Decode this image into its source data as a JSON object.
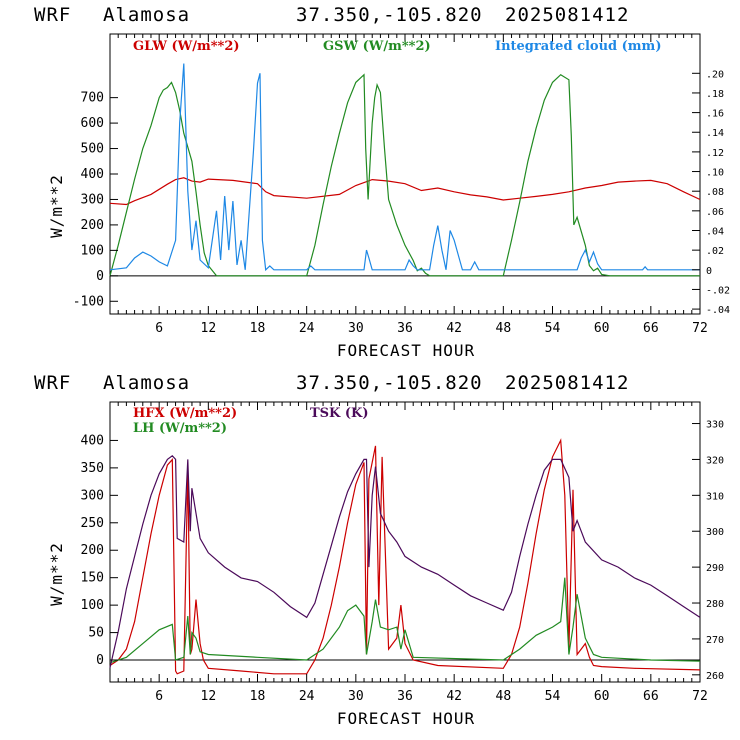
{
  "charts": [
    {
      "header": {
        "model": "WRF",
        "site": "Alamosa",
        "coords": "37.350,-105.820",
        "run": "2025081412"
      },
      "xlabel": "FORECAST HOUR",
      "ylabel": "W/m**2",
      "legend": [
        {
          "label": "GLW (W/m**2)",
          "color": "#cc0000"
        },
        {
          "label": "GSW (W/m**2)",
          "color": "#228b22"
        },
        {
          "label": "Integrated cloud (mm)",
          "color": "#1e88e5"
        }
      ]
    },
    {
      "header": {
        "model": "WRF",
        "site": "Alamosa",
        "coords": "37.350,-105.820",
        "run": "2025081412"
      },
      "xlabel": "FORECAST HOUR",
      "ylabel": "W/m**2",
      "legend": [
        {
          "label": "HFX (W/m**2)",
          "color": "#cc0000"
        },
        {
          "label": "LH  (W/m**2)",
          "color": "#228b22"
        },
        {
          "label": "TSK (K)",
          "color": "#4b0a5a"
        }
      ]
    }
  ],
  "chart_data": [
    {
      "type": "line",
      "title": "WRF Alamosa 37.350,-105.820 2025081412",
      "xlabel": "FORECAST HOUR",
      "ylabel": "W/m**2",
      "xlim": [
        0,
        72
      ],
      "ylim": [
        -150,
        950
      ],
      "y2lim": [
        -0.045,
        0.24
      ],
      "x_ticks": [
        6,
        12,
        18,
        24,
        30,
        36,
        42,
        48,
        54,
        60,
        66,
        72
      ],
      "y_ticks": [
        -100,
        0,
        100,
        200,
        300,
        400,
        500,
        600,
        700
      ],
      "y2_ticks": [
        -0.04,
        -0.02,
        0.0,
        0.02,
        0.04,
        0.06,
        0.08,
        0.1,
        0.12,
        0.14,
        0.16,
        0.18,
        0.2
      ],
      "y2_tick_labels": [
        "-.04",
        "-.02",
        "0",
        ".02",
        ".04",
        ".06",
        ".08",
        ".10",
        ".12",
        ".14",
        ".16",
        ".18",
        ".20"
      ],
      "series": [
        {
          "name": "GLW (W/m**2)",
          "color": "#cc0000",
          "axis": "left",
          "x": [
            0,
            2,
            3,
            5,
            7,
            8,
            9,
            10,
            11,
            12,
            15,
            18,
            19,
            20,
            24,
            28,
            30,
            32,
            34,
            36,
            38,
            40,
            42,
            44,
            46,
            48,
            50,
            52,
            54,
            56,
            58,
            60,
            62,
            64,
            66,
            68,
            70,
            72
          ],
          "y": [
            285,
            280,
            295,
            320,
            360,
            378,
            385,
            372,
            368,
            380,
            375,
            362,
            330,
            315,
            305,
            320,
            355,
            378,
            372,
            362,
            335,
            345,
            330,
            318,
            310,
            298,
            305,
            312,
            320,
            330,
            345,
            355,
            368,
            372,
            375,
            362,
            330,
            300
          ]
        },
        {
          "name": "GSW (W/m**2)",
          "color": "#228b22",
          "axis": "left",
          "x": [
            0,
            1,
            2,
            3,
            4,
            5,
            6,
            6.5,
            7,
            7.5,
            8,
            8.5,
            9,
            10,
            10.5,
            11,
            11.5,
            12,
            13,
            24,
            25,
            26,
            27,
            28,
            29,
            30,
            31,
            31.2,
            31.5,
            32,
            32.3,
            32.6,
            33,
            33.5,
            34,
            35,
            36,
            37,
            37.5,
            38,
            38.5,
            39,
            48,
            49,
            50,
            51,
            52,
            53,
            54,
            55,
            56,
            56.3,
            56.6,
            57,
            58,
            58.5,
            59,
            59.5,
            60,
            61,
            72
          ],
          "y": [
            0,
            120,
            250,
            380,
            500,
            590,
            700,
            730,
            740,
            760,
            720,
            650,
            560,
            450,
            330,
            200,
            90,
            40,
            0,
            0,
            120,
            280,
            430,
            560,
            680,
            760,
            790,
            500,
            300,
            600,
            700,
            750,
            720,
            500,
            300,
            200,
            120,
            60,
            20,
            30,
            10,
            0,
            0,
            140,
            290,
            450,
            580,
            690,
            760,
            790,
            770,
            550,
            200,
            230,
            120,
            40,
            20,
            30,
            5,
            0,
            0
          ]
        },
        {
          "name": "Integrated cloud (mm)",
          "color": "#1e88e5",
          "axis": "right",
          "x": [
            0,
            2,
            3,
            4,
            5,
            6,
            7,
            8,
            8.5,
            9,
            9.5,
            10,
            10.5,
            11,
            12,
            13,
            13.5,
            14,
            14.5,
            15,
            15.5,
            16,
            16.5,
            17,
            17.5,
            18,
            18.3,
            18.6,
            19,
            19.5,
            20,
            24,
            24.5,
            25,
            31,
            31.3,
            31.6,
            32,
            36,
            36.5,
            37,
            37.5,
            38,
            39,
            39.5,
            40,
            40.5,
            41,
            41.5,
            42,
            42.5,
            43,
            44,
            44.5,
            45,
            57,
            57.5,
            58,
            58.5,
            59,
            59.5,
            60,
            65,
            65.3,
            65.6,
            72
          ],
          "y": [
            0,
            0.002,
            0.012,
            0.018,
            0.014,
            0.008,
            0.004,
            0.03,
            0.15,
            0.21,
            0.08,
            0.02,
            0.05,
            0.01,
            0.002,
            0.06,
            0.01,
            0.075,
            0.02,
            0.07,
            0.005,
            0.03,
            0.0,
            0.06,
            0.12,
            0.19,
            0.2,
            0.03,
            0.0,
            0.004,
            0.0,
            0.0,
            0.004,
            0.0,
            0.0,
            0.02,
            0.012,
            0.0,
            0.0,
            0.01,
            0.004,
            0.0,
            0.0,
            0.0,
            0.025,
            0.045,
            0.02,
            0.0,
            0.04,
            0.03,
            0.015,
            0.0,
            0.0,
            0.008,
            0.0,
            0.0,
            0.012,
            0.02,
            0.008,
            0.018,
            0.006,
            0.0,
            0.0,
            0.003,
            0.0,
            0.0
          ]
        }
      ]
    },
    {
      "type": "line",
      "title": "WRF Alamosa 37.350,-105.820 2025081412",
      "xlabel": "FORECAST HOUR",
      "ylabel": "W/m**2",
      "xlim": [
        0,
        72
      ],
      "ylim": [
        -40,
        470
      ],
      "y2lim": [
        258,
        336
      ],
      "x_ticks": [
        6,
        12,
        18,
        24,
        30,
        36,
        42,
        48,
        54,
        60,
        66,
        72
      ],
      "y_ticks": [
        0,
        50,
        100,
        150,
        200,
        250,
        300,
        350,
        400
      ],
      "y2_ticks": [
        260,
        270,
        280,
        290,
        300,
        310,
        320,
        330
      ],
      "y2_tick_labels": [
        "260",
        "270",
        "280",
        "290",
        "300",
        "310",
        "320",
        "330"
      ],
      "series": [
        {
          "name": "HFX (W/m**2)",
          "color": "#cc0000",
          "axis": "left",
          "x": [
            0,
            1,
            2,
            3,
            4,
            5,
            6,
            7,
            7.6,
            8,
            8.2,
            9,
            9.5,
            9.8,
            10,
            10.5,
            11,
            11.4,
            12,
            16,
            20,
            24,
            25,
            26,
            27,
            28,
            29,
            30,
            31,
            31.3,
            31.6,
            32,
            32.4,
            32.8,
            33.2,
            34,
            35,
            35.5,
            36,
            37,
            40,
            48,
            49,
            50,
            51,
            52,
            53,
            54,
            55,
            55.5,
            56,
            56.5,
            57,
            57.5,
            58,
            58.5,
            59,
            60,
            64,
            72
          ],
          "y": [
            -10,
            0,
            20,
            70,
            150,
            230,
            300,
            355,
            365,
            -20,
            -25,
            -20,
            350,
            10,
            20,
            110,
            30,
            0,
            -15,
            -20,
            -25,
            -25,
            0,
            40,
            100,
            170,
            250,
            320,
            360,
            10,
            330,
            360,
            390,
            100,
            370,
            20,
            40,
            100,
            30,
            0,
            -10,
            -15,
            10,
            60,
            140,
            230,
            310,
            370,
            400,
            300,
            20,
            310,
            10,
            20,
            30,
            5,
            -10,
            -12,
            -15,
            -18
          ]
        },
        {
          "name": "LH  (W/m**2)",
          "color": "#228b22",
          "axis": "left",
          "x": [
            0,
            2,
            4,
            6,
            7.6,
            8,
            9,
            9.5,
            9.8,
            10,
            10.5,
            11,
            12,
            18,
            24,
            26,
            28,
            29,
            30,
            31,
            31.3,
            32,
            32.4,
            33,
            34,
            35,
            35.5,
            36,
            37,
            48,
            50,
            52,
            54,
            55,
            55.5,
            56,
            56.5,
            57,
            58,
            58.5,
            59,
            60,
            66,
            72
          ],
          "y": [
            -5,
            5,
            30,
            55,
            65,
            0,
            5,
            80,
            10,
            50,
            40,
            15,
            10,
            5,
            0,
            20,
            60,
            90,
            100,
            80,
            10,
            70,
            110,
            60,
            55,
            60,
            20,
            55,
            5,
            0,
            20,
            45,
            60,
            70,
            150,
            10,
            60,
            120,
            40,
            25,
            10,
            5,
            0,
            -2
          ]
        },
        {
          "name": "TSK (K)",
          "color": "#4b0a5a",
          "axis": "right",
          "x": [
            0,
            1,
            2,
            3,
            4,
            5,
            6,
            7,
            7.6,
            8,
            8.2,
            9,
            9.5,
            9.8,
            10,
            10.5,
            11,
            12,
            14,
            16,
            18,
            20,
            22,
            24,
            25,
            26,
            27,
            28,
            29,
            30,
            31,
            31.3,
            31.6,
            32,
            32.4,
            33,
            34,
            35,
            36,
            38,
            40,
            42,
            44,
            46,
            48,
            49,
            50,
            51,
            52,
            53,
            54,
            55,
            56,
            56.5,
            57,
            57.5,
            58,
            60,
            62,
            64,
            66,
            68,
            70,
            72
          ],
          "y": [
            262,
            272,
            284,
            293,
            302,
            310,
            316,
            320,
            321,
            320,
            298,
            297,
            320,
            300,
            312,
            305,
            298,
            294,
            290,
            287,
            286,
            283,
            279,
            276,
            280,
            288,
            296,
            304,
            311,
            316,
            320,
            320,
            290,
            310,
            318,
            305,
            300,
            297,
            293,
            290,
            288,
            285,
            282,
            280,
            278,
            283,
            293,
            302,
            310,
            317,
            320,
            320,
            315,
            300,
            303,
            300,
            297,
            292,
            290,
            287,
            285,
            282,
            279,
            276
          ]
        }
      ]
    }
  ]
}
